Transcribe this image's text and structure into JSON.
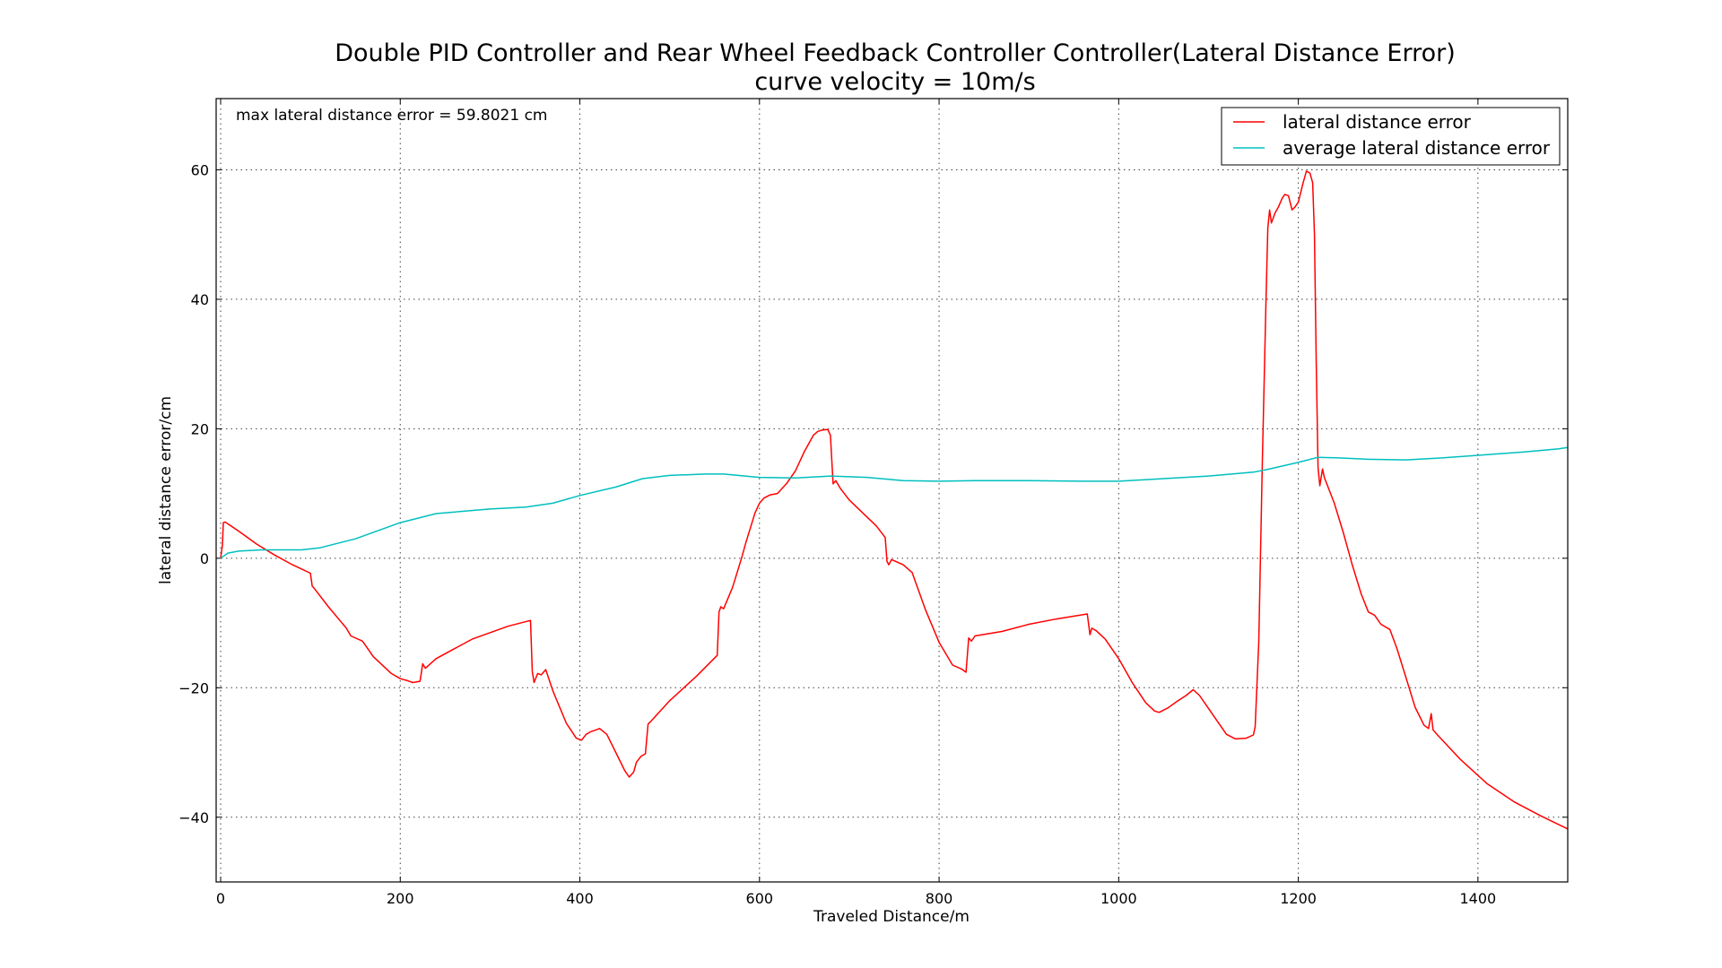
{
  "chart_data": {
    "type": "line",
    "title": "Double PID Controller and Rear Wheel Feedback Controller Controller(Lateral Distance Error)",
    "subtitle": "curve velocity = 10m/s",
    "xlabel": "Traveled Distance/m",
    "ylabel": "lateral distance error/cm",
    "xlim": [
      -5,
      1500
    ],
    "ylim": [
      -50,
      71
    ],
    "xticks": [
      0,
      200,
      400,
      600,
      800,
      1000,
      1200,
      1400
    ],
    "yticks": [
      -40,
      -20,
      0,
      20,
      40,
      60
    ],
    "ytick_labels": [
      "−40",
      "−20",
      "0",
      "20",
      "40",
      "60"
    ],
    "grid": true,
    "legend_position": "top-right",
    "annotation": "max lateral distance error = 59.8021 cm",
    "series": [
      {
        "name": "lateral distance error",
        "color": "#ff0000",
        "points": [
          [
            0,
            0
          ],
          [
            2,
            2
          ],
          [
            3,
            5.5
          ],
          [
            5,
            5.6
          ],
          [
            20,
            4.2
          ],
          [
            40,
            2.2
          ],
          [
            60,
            0.5
          ],
          [
            80,
            -1
          ],
          [
            100,
            -2.3
          ],
          [
            102,
            -4.3
          ],
          [
            104,
            -4.6
          ],
          [
            120,
            -7.5
          ],
          [
            140,
            -10.8
          ],
          [
            145,
            -12
          ],
          [
            158,
            -12.8
          ],
          [
            170,
            -15.2
          ],
          [
            190,
            -17.8
          ],
          [
            200,
            -18.6
          ],
          [
            208,
            -18.9
          ],
          [
            214,
            -19.2
          ],
          [
            222,
            -19.0
          ],
          [
            225,
            -16.3
          ],
          [
            228,
            -17
          ],
          [
            240,
            -15.5
          ],
          [
            280,
            -12.5
          ],
          [
            320,
            -10.5
          ],
          [
            345,
            -9.6
          ],
          [
            347,
            -17.5
          ],
          [
            349,
            -19.2
          ],
          [
            353,
            -17.8
          ],
          [
            357,
            -18
          ],
          [
            362,
            -17.2
          ],
          [
            370,
            -20.5
          ],
          [
            385,
            -25.5
          ],
          [
            396,
            -27.8
          ],
          [
            402,
            -28.1
          ],
          [
            407,
            -27.2
          ],
          [
            412,
            -26.8
          ],
          [
            418,
            -26.5
          ],
          [
            422,
            -26.3
          ],
          [
            430,
            -27.2
          ],
          [
            440,
            -30
          ],
          [
            450,
            -32.8
          ],
          [
            455,
            -33.8
          ],
          [
            460,
            -33
          ],
          [
            463,
            -31.5
          ],
          [
            468,
            -30.6
          ],
          [
            473,
            -30.2
          ],
          [
            476,
            -25.6
          ],
          [
            479,
            -25.2
          ],
          [
            500,
            -22
          ],
          [
            530,
            -18.2
          ],
          [
            553,
            -15
          ],
          [
            555,
            -8.3
          ],
          [
            557,
            -7.5
          ],
          [
            560,
            -7.8
          ],
          [
            570,
            -4.5
          ],
          [
            580,
            0
          ],
          [
            585,
            2.5
          ],
          [
            595,
            7
          ],
          [
            600,
            8.5
          ],
          [
            605,
            9.3
          ],
          [
            612,
            9.8
          ],
          [
            620,
            10
          ],
          [
            630,
            11.5
          ],
          [
            640,
            13.5
          ],
          [
            650,
            16.5
          ],
          [
            660,
            19
          ],
          [
            665,
            19.6
          ],
          [
            670,
            19.8
          ],
          [
            676,
            19.9
          ],
          [
            679,
            19
          ],
          [
            682,
            11.5
          ],
          [
            685,
            12
          ],
          [
            690,
            10.8
          ],
          [
            700,
            9
          ],
          [
            715,
            7
          ],
          [
            730,
            5
          ],
          [
            740,
            3.2
          ],
          [
            742,
            -0.5
          ],
          [
            744,
            -1
          ],
          [
            747,
            -0.2
          ],
          [
            760,
            -1
          ],
          [
            770,
            -2.2
          ],
          [
            785,
            -8
          ],
          [
            800,
            -13
          ],
          [
            815,
            -16.5
          ],
          [
            825,
            -17.1
          ],
          [
            830,
            -17.6
          ],
          [
            833,
            -12.3
          ],
          [
            836,
            -12.8
          ],
          [
            840,
            -12
          ],
          [
            870,
            -11.3
          ],
          [
            900,
            -10.2
          ],
          [
            930,
            -9.4
          ],
          [
            965,
            -8.6
          ],
          [
            968,
            -11.8
          ],
          [
            970,
            -10.8
          ],
          [
            975,
            -11.2
          ],
          [
            985,
            -12.5
          ],
          [
            1000,
            -15.5
          ],
          [
            1015,
            -19.2
          ],
          [
            1030,
            -22.3
          ],
          [
            1040,
            -23.6
          ],
          [
            1045,
            -23.8
          ],
          [
            1055,
            -23.1
          ],
          [
            1065,
            -22.1
          ],
          [
            1075,
            -21.2
          ],
          [
            1083,
            -20.3
          ],
          [
            1090,
            -21.2
          ],
          [
            1100,
            -23.2
          ],
          [
            1110,
            -25.2
          ],
          [
            1120,
            -27.2
          ],
          [
            1130,
            -27.9
          ],
          [
            1142,
            -27.8
          ],
          [
            1150,
            -27.3
          ],
          [
            1152,
            -26
          ],
          [
            1156,
            -13
          ],
          [
            1160,
            15
          ],
          [
            1164,
            40
          ],
          [
            1166,
            51
          ],
          [
            1168,
            53.8
          ],
          [
            1170,
            51.8
          ],
          [
            1174,
            53.3
          ],
          [
            1178,
            54.3
          ],
          [
            1182,
            55.6
          ],
          [
            1185,
            56.2
          ],
          [
            1189,
            56.0
          ],
          [
            1193,
            53.8
          ],
          [
            1196,
            54.2
          ],
          [
            1200,
            55
          ],
          [
            1205,
            57.8
          ],
          [
            1209,
            59.8
          ],
          [
            1213,
            59.5
          ],
          [
            1216,
            58
          ],
          [
            1218,
            50
          ],
          [
            1220,
            30
          ],
          [
            1222,
            14
          ],
          [
            1224,
            11.2
          ],
          [
            1227,
            13.8
          ],
          [
            1229,
            12.5
          ],
          [
            1240,
            8.5
          ],
          [
            1250,
            4
          ],
          [
            1260,
            -1
          ],
          [
            1270,
            -5.5
          ],
          [
            1278,
            -8.3
          ],
          [
            1285,
            -8.8
          ],
          [
            1292,
            -10.2
          ],
          [
            1302,
            -11
          ],
          [
            1310,
            -14
          ],
          [
            1320,
            -18.5
          ],
          [
            1330,
            -23
          ],
          [
            1340,
            -25.8
          ],
          [
            1345,
            -26.3
          ],
          [
            1348,
            -24
          ],
          [
            1350,
            -26.5
          ],
          [
            1355,
            -27.3
          ],
          [
            1380,
            -31
          ],
          [
            1410,
            -34.8
          ],
          [
            1440,
            -37.6
          ],
          [
            1470,
            -39.8
          ],
          [
            1500,
            -41.8
          ]
        ]
      },
      {
        "name": "average lateral distance error",
        "color": "#00bfbf",
        "points": [
          [
            0,
            0
          ],
          [
            8,
            0.8
          ],
          [
            20,
            1.1
          ],
          [
            45,
            1.3
          ],
          [
            70,
            1.3
          ],
          [
            90,
            1.3
          ],
          [
            110,
            1.6
          ],
          [
            150,
            3
          ],
          [
            200,
            5.5
          ],
          [
            240,
            6.9
          ],
          [
            300,
            7.6
          ],
          [
            340,
            7.9
          ],
          [
            370,
            8.5
          ],
          [
            400,
            9.7
          ],
          [
            440,
            11
          ],
          [
            470,
            12.3
          ],
          [
            500,
            12.8
          ],
          [
            540,
            13
          ],
          [
            560,
            13
          ],
          [
            600,
            12.5
          ],
          [
            640,
            12.4
          ],
          [
            680,
            12.7
          ],
          [
            720,
            12.5
          ],
          [
            760,
            12.0
          ],
          [
            800,
            11.9
          ],
          [
            840,
            12.0
          ],
          [
            900,
            12.0
          ],
          [
            960,
            11.9
          ],
          [
            1000,
            11.9
          ],
          [
            1050,
            12.3
          ],
          [
            1100,
            12.7
          ],
          [
            1150,
            13.3
          ],
          [
            1165,
            13.7
          ],
          [
            1200,
            14.8
          ],
          [
            1222,
            15.6
          ],
          [
            1245,
            15.5
          ],
          [
            1275,
            15.3
          ],
          [
            1320,
            15.2
          ],
          [
            1360,
            15.5
          ],
          [
            1400,
            15.9
          ],
          [
            1450,
            16.4
          ],
          [
            1490,
            16.9
          ],
          [
            1500,
            17.1
          ]
        ]
      }
    ]
  }
}
